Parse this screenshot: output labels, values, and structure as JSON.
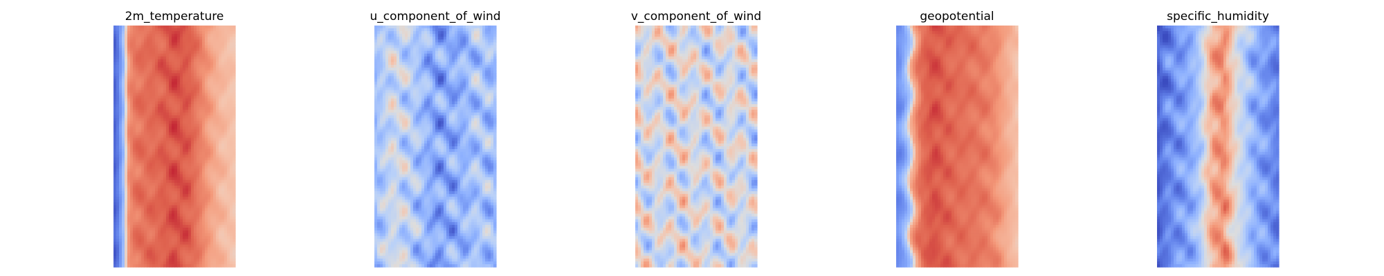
{
  "chart_data": [
    {
      "type": "heatmap",
      "title": "2m_temperature",
      "colormap": "coolwarm",
      "axes_visible": false,
      "grid": false,
      "pattern": "warm band covering most of the field with a cold strip along the left edge",
      "profile_x": [
        0.0,
        0.04,
        0.08,
        0.12,
        0.16,
        0.22,
        0.35,
        0.5,
        0.62,
        0.72,
        0.8,
        0.88,
        0.94,
        1.0
      ],
      "profile_value": [
        0.05,
        0.12,
        0.3,
        0.75,
        0.82,
        0.84,
        0.86,
        0.9,
        0.88,
        0.8,
        0.72,
        0.66,
        0.64,
        0.62
      ]
    },
    {
      "type": "heatmap",
      "title": "u_component_of_wind",
      "colormap": "coolwarm",
      "axes_visible": false,
      "grid": false,
      "pattern": "mostly blue and grey field with streaks of red",
      "profile_x": [
        0.0,
        0.15,
        0.3,
        0.5,
        0.7,
        0.85,
        1.0
      ],
      "profile_value": [
        0.3,
        0.45,
        0.38,
        0.22,
        0.26,
        0.34,
        0.3
      ]
    },
    {
      "type": "heatmap",
      "title": "v_component_of_wind",
      "colormap": "coolwarm",
      "axes_visible": false,
      "grid": false,
      "pattern": "near-neutral field with scattered blue and red eddies",
      "profile_x": [
        0.0,
        0.2,
        0.4,
        0.6,
        0.8,
        1.0
      ],
      "profile_value": [
        0.5,
        0.46,
        0.5,
        0.45,
        0.48,
        0.44
      ]
    },
    {
      "type": "heatmap",
      "title": "geopotential",
      "colormap": "coolwarm",
      "axes_visible": false,
      "grid": false,
      "pattern": "warm field with a cold strip along the left edge and a wavy boundary",
      "profile_x": [
        0.0,
        0.05,
        0.1,
        0.14,
        0.2,
        0.3,
        0.45,
        0.6,
        0.72,
        0.82,
        0.9,
        1.0
      ],
      "profile_value": [
        0.15,
        0.2,
        0.35,
        0.7,
        0.85,
        0.9,
        0.86,
        0.84,
        0.82,
        0.78,
        0.7,
        0.62
      ]
    },
    {
      "type": "heatmap",
      "title": "specific_humidity",
      "colormap": "coolwarm",
      "axes_visible": false,
      "grid": false,
      "pattern": "blue field with a warm streak down the centre",
      "profile_x": [
        0.0,
        0.1,
        0.25,
        0.35,
        0.45,
        0.55,
        0.65,
        0.8,
        0.92,
        1.0
      ],
      "profile_value": [
        0.05,
        0.15,
        0.22,
        0.35,
        0.7,
        0.78,
        0.5,
        0.25,
        0.18,
        0.12
      ]
    }
  ]
}
